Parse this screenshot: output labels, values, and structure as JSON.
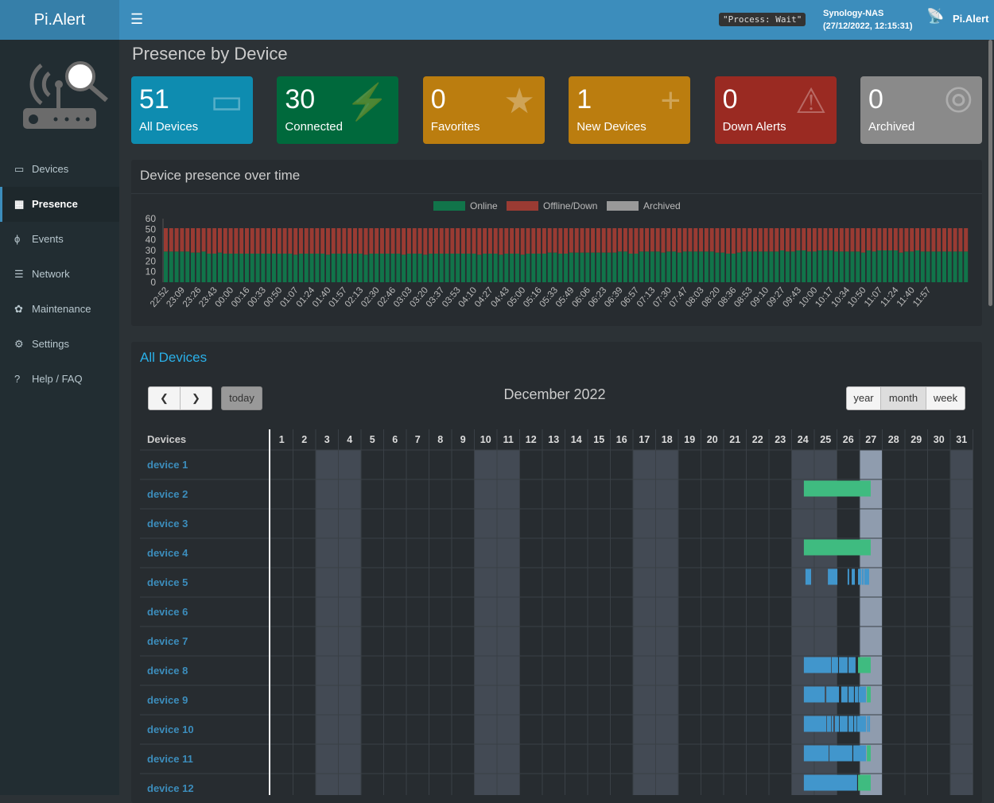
{
  "header": {
    "logo": "Pi.Alert",
    "status": "\"Process: Wait\"",
    "host": "Synology-NAS",
    "datetime": "(27/12/2022, 12:15:31)",
    "app_name": "Pi.Alert"
  },
  "sidebar": {
    "items": [
      {
        "label": "Devices",
        "icon": "laptop-icon"
      },
      {
        "label": "Presence",
        "icon": "calendar-icon",
        "active": true
      },
      {
        "label": "Events",
        "icon": "bolt-icon"
      },
      {
        "label": "Network",
        "icon": "server-icon"
      },
      {
        "label": "Maintenance",
        "icon": "wrench-icon"
      },
      {
        "label": "Settings",
        "icon": "gear-icon"
      },
      {
        "label": "Help / FAQ",
        "icon": "question-icon"
      }
    ]
  },
  "page_title": "Presence by Device",
  "info_boxes": [
    {
      "value": "51",
      "label": "All Devices",
      "color": "#0e8cb0",
      "icon": "laptop-icon"
    },
    {
      "value": "30",
      "label": "Connected",
      "color": "#00693c",
      "icon": "plug-icon"
    },
    {
      "value": "0",
      "label": "Favorites",
      "color": "#bb7d0f",
      "icon": "star-icon"
    },
    {
      "value": "1",
      "label": "New Devices",
      "color": "#bb7d0f",
      "icon": "plus-icon"
    },
    {
      "value": "0",
      "label": "Down Alerts",
      "color": "#9a2a22",
      "icon": "warning-icon"
    },
    {
      "value": "0",
      "label": "Archived",
      "color": "#8a8a8a",
      "icon": "eye-slash-icon"
    }
  ],
  "chart_data": {
    "type": "bar",
    "stacked": true,
    "title": "Device presence over time",
    "ylim": [
      0,
      60
    ],
    "yticks": [
      0,
      10,
      20,
      30,
      40,
      50,
      60
    ],
    "legend_position": "top",
    "xtick_labels": [
      "22:52",
      "23:09",
      "23:26",
      "23:43",
      "00:00",
      "00:16",
      "00:33",
      "00:50",
      "01:07",
      "01:24",
      "01:40",
      "01:57",
      "02:13",
      "02:30",
      "02:46",
      "03:03",
      "03:20",
      "03:37",
      "03:53",
      "04:10",
      "04:27",
      "04:43",
      "05:00",
      "05:16",
      "05:33",
      "05:49",
      "06:06",
      "06:23",
      "06:39",
      "06:57",
      "07:13",
      "07:30",
      "07:47",
      "08:03",
      "08:20",
      "08:36",
      "08:53",
      "09:10",
      "09:27",
      "09:43",
      "10:00",
      "10:17",
      "10:34",
      "10:50",
      "11:07",
      "11:24",
      "11:40",
      "11:57"
    ],
    "series": [
      {
        "name": "Online",
        "color": "#11744a",
        "values": [
          29,
          29,
          29,
          29,
          29,
          28,
          28,
          29,
          27,
          27,
          28,
          27,
          27,
          27,
          27,
          27,
          27,
          27,
          27,
          27,
          27,
          27,
          27,
          27,
          26,
          27,
          27,
          27,
          27,
          27,
          26,
          27,
          27,
          27,
          27,
          27,
          27,
          26,
          27,
          27,
          27,
          27,
          27,
          27,
          26,
          27,
          27,
          27,
          26,
          27,
          27,
          27,
          27,
          27,
          27,
          27,
          27,
          27,
          26,
          27,
          27,
          27,
          26,
          27,
          27,
          27,
          26,
          27,
          27,
          27,
          27,
          28,
          28,
          27,
          27,
          28,
          28,
          28,
          28,
          28,
          28,
          28,
          28,
          28,
          29,
          29,
          27,
          27,
          29,
          29,
          29,
          29,
          28,
          29,
          29,
          28,
          29,
          29,
          29,
          29,
          29,
          29,
          28,
          28,
          27,
          27,
          28,
          29,
          29,
          29,
          29,
          29,
          29,
          29,
          30,
          29,
          29,
          30,
          30,
          29,
          29,
          30,
          30,
          30,
          29,
          29,
          29,
          29,
          29,
          28,
          30,
          29,
          30,
          30,
          30,
          30,
          28,
          29,
          29,
          30,
          29,
          29,
          29,
          29,
          29,
          29,
          29,
          29,
          29
        ]
      },
      {
        "name": "Offline/Down",
        "color": "#9a3b33",
        "values": [
          22,
          22,
          22,
          22,
          22,
          23,
          23,
          22,
          24,
          24,
          23,
          24,
          24,
          24,
          24,
          24,
          24,
          24,
          24,
          24,
          24,
          24,
          24,
          24,
          25,
          24,
          24,
          24,
          24,
          24,
          25,
          24,
          24,
          24,
          24,
          24,
          24,
          25,
          24,
          24,
          24,
          24,
          24,
          24,
          25,
          24,
          24,
          24,
          25,
          24,
          24,
          24,
          24,
          24,
          24,
          24,
          24,
          24,
          25,
          24,
          24,
          24,
          25,
          24,
          24,
          24,
          25,
          24,
          24,
          24,
          24,
          23,
          23,
          24,
          24,
          23,
          23,
          23,
          23,
          23,
          23,
          23,
          23,
          23,
          22,
          22,
          24,
          24,
          22,
          22,
          22,
          22,
          23,
          22,
          22,
          23,
          22,
          22,
          22,
          22,
          22,
          22,
          23,
          23,
          24,
          24,
          23,
          22,
          22,
          22,
          22,
          22,
          22,
          22,
          21,
          22,
          22,
          21,
          21,
          22,
          22,
          21,
          21,
          21,
          22,
          22,
          22,
          22,
          22,
          23,
          21,
          22,
          21,
          21,
          21,
          21,
          23,
          22,
          22,
          21,
          22,
          22,
          22,
          22,
          22,
          22,
          22,
          22,
          22
        ]
      },
      {
        "name": "Archived",
        "color": "#999999",
        "values": []
      }
    ]
  },
  "calendar": {
    "title": "All Devices",
    "month_title": "December 2022",
    "today_label": "today",
    "prev_icon": "chevron-left-icon",
    "next_icon": "chevron-right-icon",
    "views": [
      "year",
      "month",
      "week"
    ],
    "active_view": "month",
    "devices_header": "Devices",
    "today": 27,
    "weekend_days": [
      3,
      4,
      10,
      11,
      17,
      18,
      24,
      25,
      31
    ],
    "days": [
      "1",
      "2",
      "3",
      "4",
      "5",
      "6",
      "7",
      "8",
      "9",
      "10",
      "11",
      "12",
      "13",
      "14",
      "15",
      "16",
      "17",
      "18",
      "19",
      "20",
      "21",
      "22",
      "23",
      "24",
      "25",
      "26",
      "27",
      "28",
      "29",
      "30",
      "31"
    ],
    "colors": {
      "online": "#3fbb80",
      "event": "#4196cc"
    },
    "devices": [
      {
        "name": "device 1",
        "events": []
      },
      {
        "name": "device 2",
        "events": [
          [
            "online",
            24.54,
            27.49
          ]
        ]
      },
      {
        "name": "device 3",
        "events": []
      },
      {
        "name": "device 4",
        "events": [
          [
            "online",
            24.54,
            27.49
          ]
        ]
      },
      {
        "name": "device 5",
        "events": [
          [
            "event",
            24.61,
            24.86
          ],
          [
            "event",
            25.6,
            26.02
          ],
          [
            "event",
            26.47,
            26.54
          ],
          [
            "event",
            26.65,
            26.79
          ],
          [
            "event",
            26.93,
            27.07
          ],
          [
            "event",
            27.1,
            27.18
          ],
          [
            "event",
            27.21,
            27.42
          ]
        ]
      },
      {
        "name": "device 6",
        "events": []
      },
      {
        "name": "device 7",
        "events": []
      },
      {
        "name": "device 8",
        "events": [
          [
            "event",
            24.54,
            25.74
          ],
          [
            "event",
            25.77,
            26.05
          ],
          [
            "event",
            26.09,
            26.47
          ],
          [
            "event",
            26.51,
            26.82
          ],
          [
            "online",
            26.93,
            27.49
          ]
        ]
      },
      {
        "name": "device 9",
        "events": [
          [
            "event",
            24.54,
            25.46
          ],
          [
            "event",
            25.53,
            26.09
          ],
          [
            "event",
            26.19,
            26.47
          ],
          [
            "event",
            26.51,
            26.75
          ],
          [
            "event",
            26.79,
            26.93
          ],
          [
            "event",
            26.95,
            27.28
          ],
          [
            "online",
            27.32,
            27.49
          ]
        ]
      },
      {
        "name": "device 10",
        "events": [
          [
            "event",
            24.54,
            25.53
          ],
          [
            "event",
            25.56,
            25.74
          ],
          [
            "event",
            25.77,
            25.84
          ],
          [
            "event",
            25.91,
            26.09
          ],
          [
            "event",
            26.12,
            26.47
          ],
          [
            "event",
            26.51,
            26.72
          ],
          [
            "event",
            26.75,
            26.86
          ],
          [
            "event",
            26.88,
            27.28
          ],
          [
            "event",
            27.32,
            27.35
          ],
          [
            "event",
            27.39,
            27.46
          ]
        ]
      },
      {
        "name": "device 11",
        "events": [
          [
            "event",
            24.54,
            25.63
          ],
          [
            "event",
            25.67,
            26.68
          ],
          [
            "event",
            26.72,
            27.28
          ],
          [
            "online",
            27.32,
            27.49
          ]
        ]
      },
      {
        "name": "device 12",
        "events": [
          [
            "event",
            24.54,
            26.89
          ],
          [
            "online",
            26.93,
            27.49
          ]
        ]
      }
    ]
  }
}
